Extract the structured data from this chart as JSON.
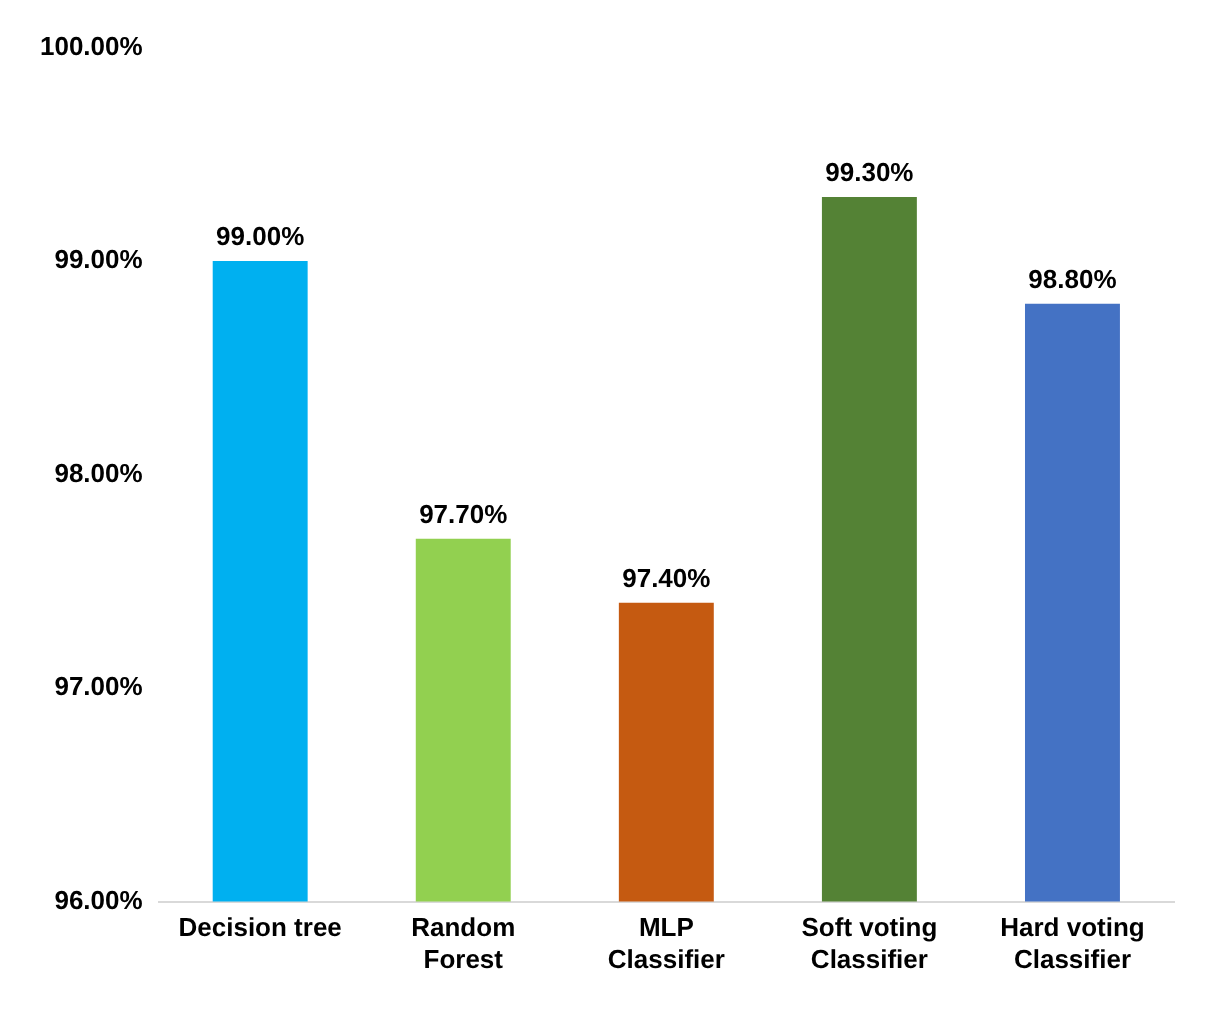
{
  "chart_data": {
    "type": "bar",
    "categories": [
      "Decision tree",
      "Random\nForest",
      "MLP\nClassifier",
      "Soft voting\nClassifier",
      "Hard voting\nClassifier"
    ],
    "values": [
      99.0,
      97.7,
      97.4,
      99.3,
      98.8
    ],
    "colors": [
      "#00b0f0",
      "#92d050",
      "#c55a11",
      "#548235",
      "#4472c4"
    ],
    "value_labels": [
      "99.00%",
      "97.70%",
      "97.40%",
      "99.30%",
      "98.80%"
    ],
    "ylim": [
      96,
      100
    ],
    "yticks": [
      {
        "value": 96,
        "label": "96.00%"
      },
      {
        "value": 97,
        "label": "97.00%"
      },
      {
        "value": 98,
        "label": "98.00%"
      },
      {
        "value": 99,
        "label": "99.00%"
      },
      {
        "value": 100,
        "label": "100.00%"
      }
    ],
    "grid": false,
    "legend": false
  }
}
